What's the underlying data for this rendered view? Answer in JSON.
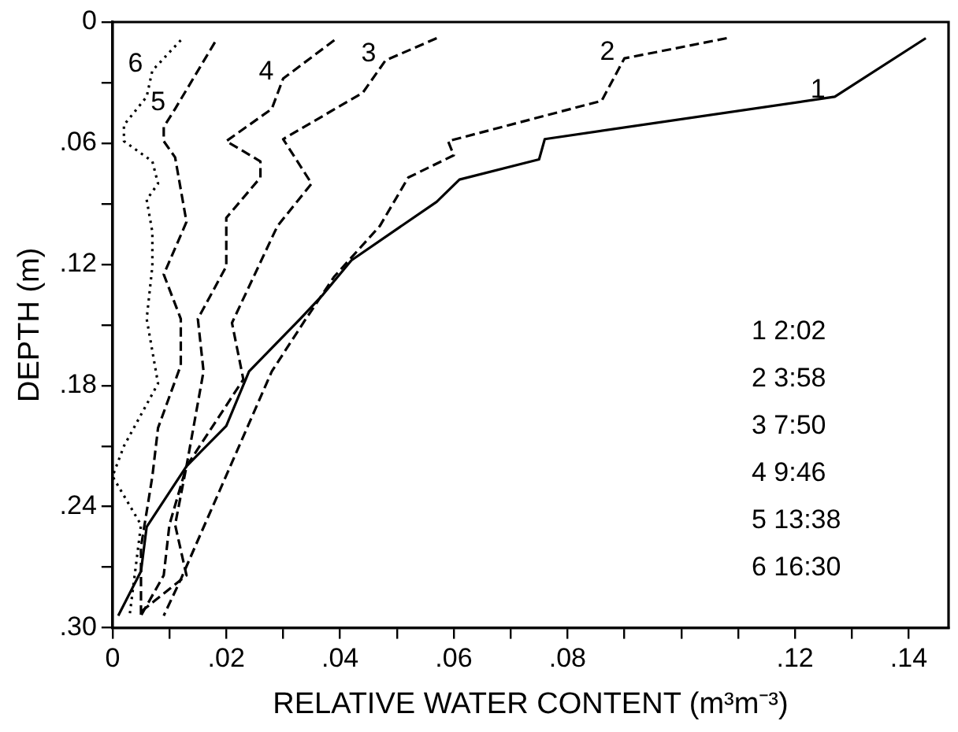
{
  "chart_data": {
    "type": "line",
    "xlabel": "RELATIVE WATER CONTENT (m³m⁻³)",
    "ylabel": "DEPTH (m)",
    "xlim": [
      0,
      0.147
    ],
    "ylim": [
      0.3,
      0
    ],
    "xticks": [
      0,
      {
        "value": 0.01,
        "label": null
      },
      {
        "value": 0.02,
        "label": ".02"
      },
      {
        "value": 0.03,
        "label": null
      },
      {
        "value": 0.04,
        "label": ".04"
      },
      {
        "value": 0.05,
        "label": null
      },
      {
        "value": 0.06,
        "label": ".06"
      },
      {
        "value": 0.07,
        "label": null
      },
      {
        "value": 0.08,
        "label": ".08"
      },
      {
        "value": 0.09,
        "label": null
      },
      {
        "value": 0.1,
        "label": null
      },
      {
        "value": 0.11,
        "label": null
      },
      {
        "value": 0.12,
        "label": ".12"
      },
      {
        "value": 0.13,
        "label": null
      },
      {
        "value": 0.14,
        "label": ".14"
      }
    ],
    "yticks": [
      0,
      {
        "value": 0.03,
        "label": null
      },
      {
        "value": 0.06,
        "label": ".06"
      },
      {
        "value": 0.09,
        "label": null
      },
      {
        "value": 0.12,
        "label": ".12"
      },
      {
        "value": 0.15,
        "label": null
      },
      {
        "value": 0.18,
        "label": ".18"
      },
      {
        "value": 0.21,
        "label": null
      },
      {
        "value": 0.24,
        "label": ".24"
      },
      {
        "value": 0.27,
        "label": null
      },
      {
        "value": 0.3,
        "label": ".30"
      }
    ],
    "grid": false,
    "legend": false,
    "marker": "none",
    "series": [
      {
        "name": "1",
        "color": "#000000",
        "line_style": "solid",
        "x": [
          0.143,
          0.127,
          0.076,
          0.075,
          0.061,
          0.057,
          0.042,
          0.037,
          0.033,
          0.024,
          0.02,
          0.013,
          0.006,
          0.005,
          0.001
        ],
        "values": [
          0.008,
          0.037,
          0.058,
          0.068,
          0.078,
          0.089,
          0.118,
          0.135,
          0.147,
          0.173,
          0.2,
          0.22,
          0.25,
          0.272,
          0.294
        ]
      },
      {
        "name": "2",
        "color": "#000000",
        "line_style": "dashed",
        "x": [
          0.108,
          0.09,
          0.086,
          0.059,
          0.06,
          0.052,
          0.047,
          0.039,
          0.034,
          0.028,
          0.012,
          0.009
        ],
        "values": [
          0.008,
          0.018,
          0.039,
          0.059,
          0.066,
          0.077,
          0.101,
          0.126,
          0.147,
          0.173,
          0.276,
          0.294
        ]
      },
      {
        "name": "3",
        "color": "#000000",
        "line_style": "dashed",
        "x": [
          0.057,
          0.048,
          0.044,
          0.03,
          0.035,
          0.029,
          0.021,
          0.023,
          0.013,
          0.011,
          0.013,
          0.005
        ],
        "values": [
          0.008,
          0.019,
          0.035,
          0.058,
          0.08,
          0.101,
          0.149,
          0.177,
          0.22,
          0.249,
          0.274,
          0.292
        ]
      },
      {
        "name": "4",
        "color": "#000000",
        "line_style": "dashed",
        "x": [
          0.039,
          0.03,
          0.028,
          0.02,
          0.026,
          0.026,
          0.02,
          0.02,
          0.015,
          0.016,
          0.013,
          0.01,
          0.009,
          0.005
        ],
        "values": [
          0.009,
          0.028,
          0.043,
          0.059,
          0.069,
          0.077,
          0.097,
          0.121,
          0.147,
          0.173,
          0.22,
          0.249,
          0.274,
          0.294
        ]
      },
      {
        "name": "5",
        "color": "#000000",
        "line_style": "dashed",
        "x": [
          0.018,
          0.011,
          0.009,
          0.009,
          0.011,
          0.013,
          0.009,
          0.012,
          0.012,
          0.008,
          0.007,
          0.005,
          0.005
        ],
        "values": [
          0.01,
          0.043,
          0.052,
          0.059,
          0.067,
          0.099,
          0.125,
          0.147,
          0.17,
          0.201,
          0.225,
          0.26,
          0.294
        ]
      },
      {
        "name": "6",
        "color": "#000000",
        "line_style": "dotted",
        "x": [
          0.012,
          0.007,
          0.006,
          0.002,
          0.002,
          0.007,
          0.008,
          0.006,
          0.007,
          0.007,
          0.006,
          0.008,
          0.002,
          0.0,
          0.005,
          0.003
        ],
        "values": [
          0.009,
          0.024,
          0.037,
          0.051,
          0.059,
          0.069,
          0.08,
          0.088,
          0.104,
          0.121,
          0.147,
          0.179,
          0.21,
          0.225,
          0.249,
          0.294
        ]
      }
    ],
    "annotations": [
      "1 2:02",
      "2 3:58",
      "3 7:50",
      "4 9:46",
      "5 13:38",
      "6 16:30"
    ]
  }
}
